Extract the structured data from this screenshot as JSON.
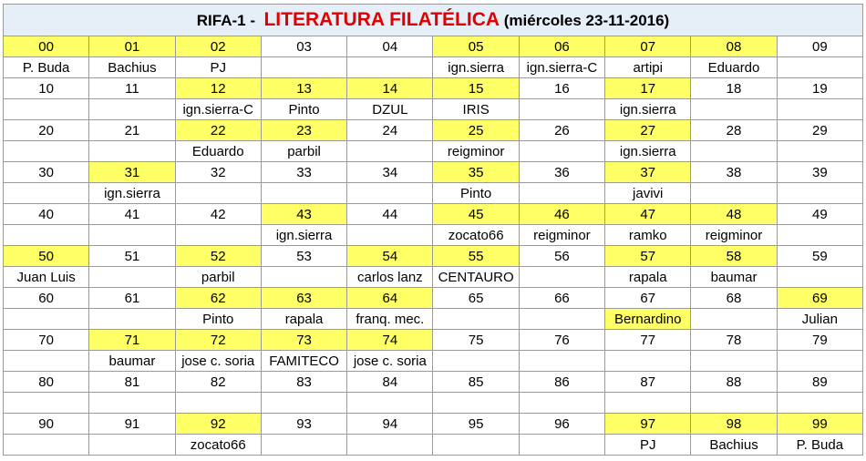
{
  "header": {
    "prefix": "RIFA-1 -",
    "title": "LITERATURA FILATÉLICA",
    "date": "(miércoles 23-11-2016)"
  },
  "highlight_color": "#ffff66",
  "table": {
    "rows": [
      {
        "numbers": [
          "00",
          "01",
          "02",
          "03",
          "04",
          "05",
          "06",
          "07",
          "08",
          "09"
        ],
        "highlighted": [
          true,
          true,
          true,
          false,
          false,
          true,
          true,
          true,
          true,
          false
        ],
        "names": [
          "P. Buda",
          "Bachius",
          "PJ",
          null,
          null,
          "ign.sierra",
          "ign.sierra-C",
          "artipi",
          "Eduardo",
          null
        ],
        "name_highlighted": [
          false,
          false,
          false,
          false,
          false,
          false,
          false,
          false,
          false,
          false
        ]
      },
      {
        "numbers": [
          "10",
          "11",
          "12",
          "13",
          "14",
          "15",
          "16",
          "17",
          "18",
          "19"
        ],
        "highlighted": [
          false,
          false,
          true,
          true,
          true,
          true,
          false,
          true,
          false,
          false
        ],
        "names": [
          null,
          null,
          "ign.sierra-C",
          "Pinto",
          "DZUL",
          "IRIS",
          null,
          "ign.sierra",
          null,
          null
        ],
        "name_highlighted": [
          false,
          false,
          false,
          false,
          false,
          false,
          false,
          false,
          false,
          false
        ]
      },
      {
        "numbers": [
          "20",
          "21",
          "22",
          "23",
          "24",
          "25",
          "26",
          "27",
          "28",
          "29"
        ],
        "highlighted": [
          false,
          false,
          true,
          true,
          false,
          true,
          false,
          true,
          false,
          false
        ],
        "names": [
          null,
          null,
          "Eduardo",
          "parbil",
          null,
          "reigminor",
          null,
          "ign.sierra",
          null,
          null
        ],
        "name_highlighted": [
          false,
          false,
          false,
          false,
          false,
          false,
          false,
          false,
          false,
          false
        ]
      },
      {
        "numbers": [
          "30",
          "31",
          "32",
          "33",
          "34",
          "35",
          "36",
          "37",
          "38",
          "39"
        ],
        "highlighted": [
          false,
          true,
          false,
          false,
          false,
          true,
          false,
          true,
          false,
          false
        ],
        "names": [
          null,
          "ign.sierra",
          null,
          null,
          null,
          "Pinto",
          null,
          "javivi",
          null,
          null
        ],
        "name_highlighted": [
          false,
          false,
          false,
          false,
          false,
          false,
          false,
          false,
          false,
          false
        ]
      },
      {
        "numbers": [
          "40",
          "41",
          "42",
          "43",
          "44",
          "45",
          "46",
          "47",
          "48",
          "49"
        ],
        "highlighted": [
          false,
          false,
          false,
          true,
          false,
          true,
          true,
          true,
          true,
          false
        ],
        "names": [
          null,
          null,
          null,
          "ign.sierra",
          null,
          "zocato66",
          "reigminor",
          "ramko",
          "reigminor",
          null
        ],
        "name_highlighted": [
          false,
          false,
          false,
          false,
          false,
          false,
          false,
          false,
          false,
          false
        ]
      },
      {
        "numbers": [
          "50",
          "51",
          "52",
          "53",
          "54",
          "55",
          "56",
          "57",
          "58",
          "59"
        ],
        "highlighted": [
          true,
          false,
          true,
          false,
          true,
          true,
          false,
          true,
          true,
          false
        ],
        "names": [
          "Juan Luis",
          null,
          "parbil",
          null,
          "carlos lanz",
          "CENTAURO",
          null,
          "rapala",
          "baumar",
          null
        ],
        "name_highlighted": [
          false,
          false,
          false,
          false,
          false,
          false,
          false,
          false,
          false,
          false
        ]
      },
      {
        "numbers": [
          "60",
          "61",
          "62",
          "63",
          "64",
          "65",
          "66",
          "67",
          "68",
          "69"
        ],
        "highlighted": [
          false,
          false,
          true,
          true,
          true,
          false,
          false,
          false,
          false,
          true
        ],
        "names": [
          null,
          null,
          "Pinto",
          "rapala",
          "franq. mec.",
          null,
          null,
          "Bernardino",
          null,
          "Julian"
        ],
        "name_highlighted": [
          false,
          false,
          false,
          false,
          false,
          false,
          false,
          true,
          false,
          false
        ]
      },
      {
        "numbers": [
          "70",
          "71",
          "72",
          "73",
          "74",
          "75",
          "76",
          "77",
          "78",
          "79"
        ],
        "highlighted": [
          false,
          true,
          true,
          true,
          true,
          false,
          false,
          false,
          false,
          false
        ],
        "names": [
          null,
          "baumar",
          "jose c. soria",
          "FAMITECO",
          "jose c. soria",
          null,
          null,
          null,
          null,
          null
        ],
        "name_highlighted": [
          false,
          false,
          false,
          false,
          false,
          false,
          false,
          false,
          false,
          false
        ]
      },
      {
        "numbers": [
          "80",
          "81",
          "82",
          "83",
          "84",
          "85",
          "86",
          "87",
          "88",
          "89"
        ],
        "highlighted": [
          false,
          false,
          false,
          false,
          false,
          false,
          false,
          false,
          false,
          false
        ],
        "names": [
          null,
          null,
          null,
          null,
          null,
          null,
          null,
          null,
          null,
          null
        ],
        "name_highlighted": [
          false,
          false,
          false,
          false,
          false,
          false,
          false,
          false,
          false,
          false
        ]
      },
      {
        "numbers": [
          "90",
          "91",
          "92",
          "93",
          "94",
          "95",
          "96",
          "97",
          "98",
          "99"
        ],
        "highlighted": [
          false,
          false,
          true,
          false,
          false,
          false,
          false,
          true,
          true,
          true
        ],
        "names": [
          null,
          null,
          "zocato66",
          null,
          null,
          null,
          null,
          "PJ",
          "Bachius",
          "P. Buda"
        ],
        "name_highlighted": [
          false,
          false,
          false,
          false,
          false,
          false,
          false,
          false,
          false,
          false
        ]
      }
    ]
  }
}
